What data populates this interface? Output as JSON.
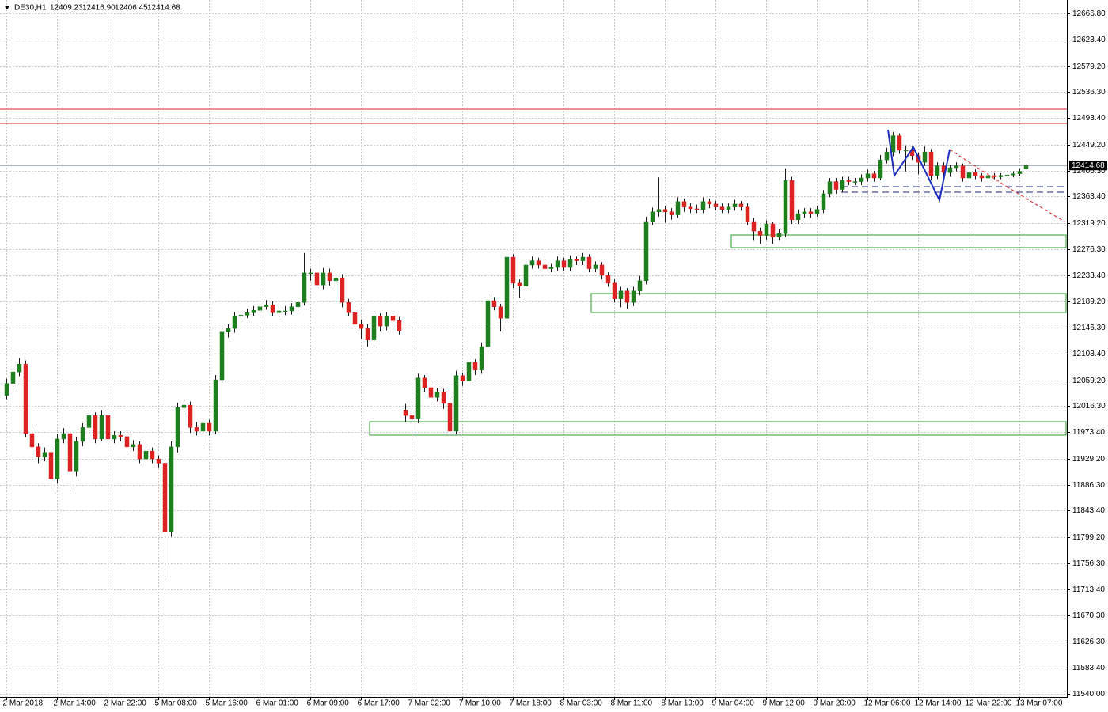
{
  "chart_data": {
    "type": "candlestick",
    "title": "DE30,H1",
    "ohlc_labels": [
      "12409.23",
      "12416.90",
      "12406.45",
      "12414.68"
    ],
    "up_color": "#1f7f1f",
    "down_color": "#dd2222",
    "grid": true,
    "ylim": [
      11535,
      12686
    ],
    "yticks": [
      {
        "value": 11540,
        "label": "11540.00"
      },
      {
        "value": 11583.4,
        "label": "11583.40"
      },
      {
        "value": 11626.3,
        "label": "11626.30"
      },
      {
        "value": 11670.3,
        "label": "11670.30"
      },
      {
        "value": 11713.4,
        "label": "11713.40"
      },
      {
        "value": 11756.3,
        "label": "11756.30"
      },
      {
        "value": 11799.2,
        "label": "11799.20"
      },
      {
        "value": 11843.4,
        "label": "11843.40"
      },
      {
        "value": 11886.3,
        "label": "11886.30"
      },
      {
        "value": 11929.2,
        "label": "11929.20"
      },
      {
        "value": 11973.4,
        "label": "11973.40"
      },
      {
        "value": 12016.3,
        "label": "12016.30"
      },
      {
        "value": 12059.2,
        "label": "12059.20"
      },
      {
        "value": 12103.4,
        "label": "12103.40"
      },
      {
        "value": 12146.3,
        "label": "12146.30"
      },
      {
        "value": 12189.2,
        "label": "12189.20"
      },
      {
        "value": 12233.4,
        "label": "12233.40"
      },
      {
        "value": 12276.3,
        "label": "12276.30"
      },
      {
        "value": 12319.2,
        "label": "12319.20"
      },
      {
        "value": 12363.4,
        "label": "12363.40"
      },
      {
        "value": 12406.3,
        "label": "12406.30"
      },
      {
        "value": 12449.2,
        "label": "12449.20"
      },
      {
        "value": 12493.4,
        "label": "12493.40"
      },
      {
        "value": 12536.3,
        "label": "12536.30"
      },
      {
        "value": 12579.2,
        "label": "12579.20"
      },
      {
        "value": 12623.4,
        "label": "12623.40"
      },
      {
        "value": 12666.8,
        "label": "12666.80"
      }
    ],
    "last_price": {
      "value": 12414.68,
      "label": "12414.68"
    },
    "categories": [
      "2 Mar 2018",
      null,
      null,
      null,
      null,
      null,
      null,
      null,
      "2 Mar 14:00",
      null,
      null,
      null,
      null,
      null,
      null,
      null,
      "2 Mar 22:00",
      null,
      null,
      null,
      null,
      null,
      null,
      null,
      "5 Mar 08:00",
      null,
      null,
      null,
      null,
      null,
      null,
      null,
      "5 Mar 16:00",
      null,
      null,
      null,
      null,
      null,
      null,
      null,
      "6 Mar 01:00",
      null,
      null,
      null,
      null,
      null,
      null,
      null,
      "6 Mar 09:00",
      null,
      null,
      null,
      null,
      null,
      null,
      null,
      "6 Mar 17:00",
      null,
      null,
      null,
      null,
      null,
      null,
      null,
      "7 Mar 02:00",
      null,
      null,
      null,
      null,
      null,
      null,
      null,
      "7 Mar 10:00",
      null,
      null,
      null,
      null,
      null,
      null,
      null,
      "7 Mar 18:00",
      null,
      null,
      null,
      null,
      null,
      null,
      null,
      "8 Mar 03:00",
      null,
      null,
      null,
      null,
      null,
      null,
      null,
      "8 Mar 11:00",
      null,
      null,
      null,
      null,
      null,
      null,
      null,
      "8 Mar 19:00",
      null,
      null,
      null,
      null,
      null,
      null,
      null,
      "9 Mar 04:00",
      null,
      null,
      null,
      null,
      null,
      null,
      null,
      "9 Mar 12:00",
      null,
      null,
      null,
      null,
      null,
      null,
      null,
      "9 Mar 20:00",
      null,
      null,
      null,
      null,
      null,
      null,
      null,
      "12 Mar 06:00",
      null,
      null,
      null,
      null,
      null,
      null,
      null,
      "12 Mar 14:00",
      null,
      null,
      null,
      null,
      null,
      null,
      null,
      "12 Mar 22:00",
      null,
      null,
      null,
      null,
      null,
      null,
      null,
      "13 Mar 07:00",
      null
    ],
    "open": [
      12034,
      12054,
      12073,
      12086,
      11971,
      11949,
      11932,
      11940,
      11896,
      11962,
      11971,
      11909,
      11958,
      11981,
      12001,
      11962,
      12001,
      11962,
      11968,
      11966,
      11949,
      11953,
      11929,
      11942,
      11929,
      11922,
      11809,
      11949,
      12014,
      12018,
      11981,
      11975,
      11988,
      11975,
      12060,
      12139,
      12145,
      12165,
      12167,
      12171,
      12175,
      12181,
      12184,
      12171,
      12174,
      12174,
      12181,
      12188,
      12237,
      12237,
      12217,
      12237,
      12224,
      12228,
      12188,
      12171,
      12152,
      12145,
      12126,
      12165,
      12149,
      12165,
      12158,
      12010,
      12001,
      11995,
      12063,
      12047,
      12031,
      12040,
      12021,
      11975,
      12067,
      12058,
      12089,
      12076,
      12115,
      12191,
      12181,
      12162,
      12263,
      12220,
      12215,
      12250,
      12257,
      12250,
      12244,
      12246,
      12257,
      12246,
      12259,
      12257,
      12263,
      12244,
      12250,
      12233,
      12220,
      12194,
      12207,
      12188,
      12207,
      12224,
      12322,
      12338,
      12342,
      12338,
      12333,
      12355,
      12346,
      12343,
      12342,
      12355,
      12351,
      12346,
      12342,
      12346,
      12351,
      12346,
      12322,
      12306,
      12299,
      12318,
      12296,
      12302,
      12390,
      12325,
      12335,
      12338,
      12335,
      12342,
      12368,
      12388,
      12375,
      12390,
      12388,
      12388,
      12394,
      12401,
      12394,
      12424,
      12437,
      12464,
      12440,
      12440,
      12431,
      12420,
      12437,
      12398,
      12414,
      12403,
      12411,
      12414,
      12394,
      12403,
      12398,
      12394,
      12398,
      12396,
      12398,
      12399,
      12401,
      12409.23
    ],
    "high": [
      12062,
      12080,
      12096,
      12092,
      11978,
      11955,
      11948,
      11946,
      11970,
      11980,
      11976,
      11966,
      11988,
      12008,
      12006,
      12010,
      12005,
      11975,
      11975,
      11970,
      11960,
      11958,
      11950,
      11948,
      11935,
      11930,
      11958,
      12022,
      12026,
      12024,
      11990,
      11995,
      11994,
      12068,
      12146,
      12152,
      12172,
      12174,
      12178,
      12182,
      12188,
      12192,
      12190,
      12180,
      12182,
      12187,
      12196,
      12270,
      12244,
      12260,
      12245,
      12244,
      12236,
      12235,
      12194,
      12178,
      12160,
      12152,
      12174,
      12170,
      12172,
      12170,
      12164,
      12020,
      12008,
      12070,
      12068,
      12054,
      12046,
      12045,
      12030,
      12075,
      12072,
      12098,
      12094,
      12122,
      12198,
      12196,
      12186,
      12272,
      12268,
      12226,
      12256,
      12264,
      12262,
      12256,
      12252,
      12264,
      12262,
      12266,
      12264,
      12270,
      12268,
      12256,
      12255,
      12238,
      12226,
      12214,
      12212,
      12214,
      12232,
      12330,
      12345,
      12395,
      12348,
      12344,
      12362,
      12360,
      12352,
      12350,
      12362,
      12360,
      12356,
      12352,
      12352,
      12358,
      12356,
      12352,
      12328,
      12312,
      12324,
      12322,
      12310,
      12410,
      12396,
      12342,
      12344,
      12344,
      12348,
      12374,
      12394,
      12394,
      12396,
      12396,
      12394,
      12400,
      12408,
      12406,
      12432,
      12444,
      12470,
      12468,
      12448,
      12446,
      12436,
      12446,
      12442,
      12420,
      12420,
      12416,
      12420,
      12418,
      12408,
      12408,
      12402,
      12402,
      12402,
      12402,
      12403,
      12405,
      12410,
      12416.9
    ],
    "low": [
      12028,
      12048,
      12066,
      11965,
      11940,
      11922,
      11925,
      11874,
      11888,
      11955,
      11875,
      11900,
      11950,
      11975,
      11955,
      11958,
      11955,
      11955,
      11958,
      11940,
      11942,
      11922,
      11924,
      11922,
      11915,
      11733,
      11800,
      11940,
      12006,
      11972,
      11968,
      11950,
      11968,
      11970,
      12055,
      12130,
      12138,
      12160,
      12162,
      12166,
      12170,
      12176,
      12165,
      12164,
      12167,
      12168,
      12175,
      12183,
      12224,
      12208,
      12210,
      12216,
      12218,
      12180,
      12165,
      12140,
      12128,
      12115,
      12120,
      12140,
      12142,
      12150,
      12135,
      11990,
      11960,
      11988,
      12040,
      12025,
      12024,
      12012,
      11968,
      11970,
      12050,
      12052,
      12068,
      12070,
      12110,
      12175,
      12140,
      12156,
      12212,
      12195,
      12210,
      12244,
      12244,
      12238,
      12238,
      12240,
      12240,
      12240,
      12250,
      12250,
      12238,
      12238,
      12226,
      12214,
      12188,
      12180,
      12178,
      12182,
      12200,
      12218,
      12316,
      12330,
      12320,
      12325,
      12328,
      12338,
      12336,
      12336,
      12336,
      12344,
      12340,
      12336,
      12336,
      12340,
      12340,
      12316,
      12290,
      12285,
      12292,
      12285,
      12290,
      12296,
      12318,
      12318,
      12328,
      12328,
      12330,
      12336,
      12362,
      12368,
      12370,
      12382,
      12382,
      12382,
      12388,
      12388,
      12390,
      12418,
      12430,
      12434,
      12405,
      12424,
      12400,
      12414,
      12390,
      12392,
      12396,
      12396,
      12405,
      12388,
      12390,
      12392,
      12388,
      12390,
      12392,
      12392,
      12394,
      12395,
      12397,
      12406.45
    ],
    "close": [
      12054,
      12073,
      12086,
      11971,
      11949,
      11932,
      11940,
      11896,
      11962,
      11971,
      11909,
      11958,
      11981,
      12001,
      11962,
      12001,
      11962,
      11968,
      11966,
      11949,
      11953,
      11929,
      11942,
      11929,
      11922,
      11809,
      11949,
      12014,
      12018,
      11981,
      11975,
      11988,
      11975,
      12060,
      12139,
      12145,
      12165,
      12167,
      12171,
      12175,
      12181,
      12184,
      12171,
      12174,
      12174,
      12181,
      12188,
      12237,
      12237,
      12217,
      12237,
      12224,
      12228,
      12188,
      12171,
      12152,
      12145,
      12126,
      12165,
      12149,
      12165,
      12158,
      12141,
      12001,
      11995,
      12063,
      12047,
      12031,
      12040,
      12021,
      11975,
      12067,
      12058,
      12089,
      12076,
      12115,
      12191,
      12181,
      12162,
      12263,
      12220,
      12215,
      12250,
      12257,
      12250,
      12244,
      12246,
      12257,
      12246,
      12259,
      12257,
      12263,
      12244,
      12250,
      12233,
      12220,
      12194,
      12207,
      12188,
      12207,
      12224,
      12322,
      12338,
      12342,
      12338,
      12333,
      12355,
      12346,
      12343,
      12342,
      12355,
      12351,
      12346,
      12342,
      12346,
      12351,
      12346,
      12322,
      12306,
      12299,
      12318,
      12296,
      12302,
      12390,
      12325,
      12335,
      12338,
      12335,
      12342,
      12368,
      12388,
      12375,
      12390,
      12388,
      12388,
      12394,
      12401,
      12394,
      12424,
      12437,
      12464,
      12440,
      12440,
      12431,
      12420,
      12437,
      12398,
      12414,
      12403,
      12411,
      12414,
      12394,
      12403,
      12398,
      12394,
      12398,
      12396,
      12398,
      12399,
      12401,
      12405,
      12414.68
    ]
  }
}
